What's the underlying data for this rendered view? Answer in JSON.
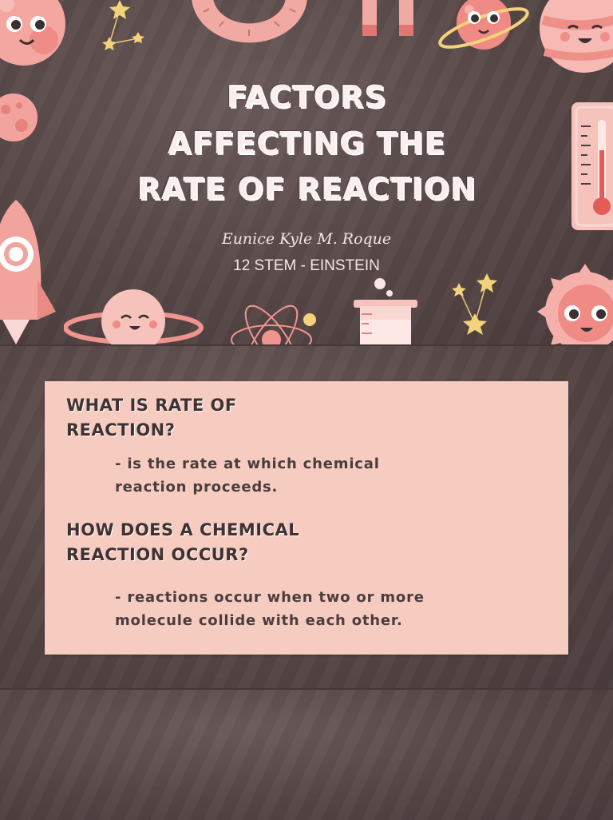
{
  "title_slide": {
    "title_lines": [
      "FACTORS",
      "AFFECTING THE",
      "RATE OF REACTION"
    ],
    "author": "Eunice Kyle M. Roque",
    "section": "12 STEM - EINSTEIN"
  },
  "content_slide": {
    "question_1": [
      "WHAT IS RATE OF",
      "REACTION?"
    ],
    "answer_1": [
      "- is the rate at which chemical",
      "reaction proceeds."
    ],
    "question_2": [
      "HOW DOES A CHEMICAL",
      "REACTION OCCUR?"
    ],
    "answer_2": [
      "- reactions occur when two or more",
      "molecule collide with each other."
    ]
  },
  "colors": {
    "background": "#574747",
    "card": "#f6cbc0",
    "accent_pink": "#f0948f",
    "star_yellow": "#f2d27a"
  },
  "icons": [
    "planet-icon",
    "star-icon",
    "protractor-icon",
    "magnet-icon",
    "thermometer-icon",
    "rocket-icon",
    "atom-icon",
    "beaker-icon",
    "sun-icon"
  ]
}
